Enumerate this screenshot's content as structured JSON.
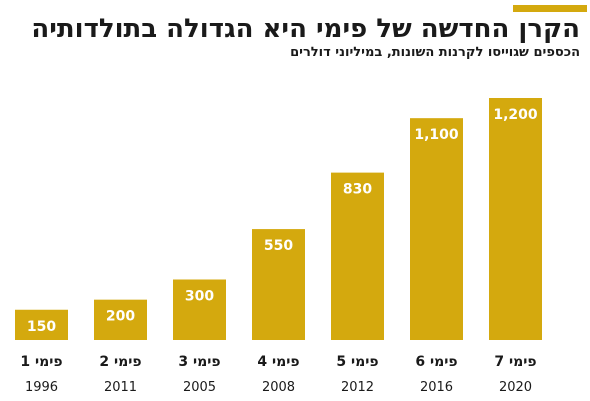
{
  "title": "הקרן החדשה של פימי היא הגדולה בתולדותיה",
  "subtitle": "הכספים שגוייסו לקרנות השונות, במיליוני דולרים",
  "colors": {
    "bar": "#d4a90e",
    "accent": "#d4a90e",
    "text": "#1a1a1a"
  },
  "chart_data": {
    "type": "bar",
    "categories": [
      "פימי 1",
      "פימי 2",
      "פימי 3",
      "פימי 4",
      "פימי 5",
      "פימי 6",
      "פימי 7"
    ],
    "years": [
      "1996",
      "2011",
      "2005",
      "2008",
      "2012",
      "2016",
      "2020"
    ],
    "values": [
      150,
      200,
      300,
      550,
      830,
      1100,
      1200
    ],
    "value_labels": [
      "150",
      "200",
      "300",
      "550",
      "830",
      "1,100",
      "1,200"
    ],
    "ylim": [
      0,
      1200
    ],
    "grid": false,
    "legend": "none"
  }
}
